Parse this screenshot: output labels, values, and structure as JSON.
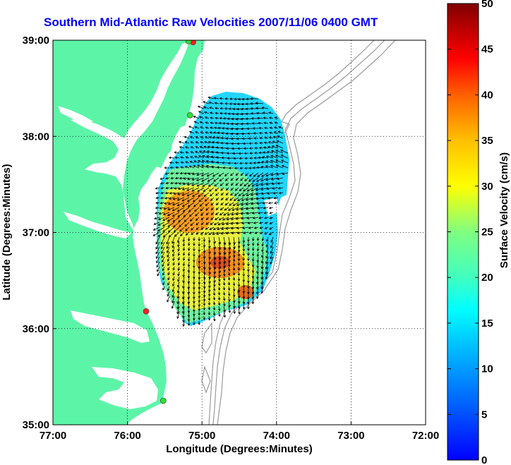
{
  "title": "Southern Mid-Atlantic Raw Velocities 2007/11/06 0400 GMT",
  "map": {
    "x_label": "Longitude (Degrees:Minutes)",
    "y_label": "Latitude (Degrees:Minutes)",
    "x_ticks": [
      {
        "value": -77,
        "label": "77:00"
      },
      {
        "value": -76,
        "label": "76:00"
      },
      {
        "value": -75,
        "label": "75:00"
      },
      {
        "value": -74,
        "label": "74:00"
      },
      {
        "value": -73,
        "label": "73:00"
      },
      {
        "value": -72,
        "label": "72:00"
      }
    ],
    "y_ticks": [
      {
        "value": 39,
        "label": "39:00"
      },
      {
        "value": 38,
        "label": "38:00"
      },
      {
        "value": 37,
        "label": "37:00"
      },
      {
        "value": 36,
        "label": "36:00"
      },
      {
        "value": 35,
        "label": "35:00"
      }
    ],
    "lon_range": [
      -77,
      -72
    ],
    "lat_range": [
      35,
      39
    ],
    "grid": "dotted",
    "land_color": "#5cf5a8",
    "bathymetry_color": "#9a9a9a",
    "stations": [
      {
        "name": "",
        "lon": -75.12,
        "lat": 38.98,
        "color": "#ff2020"
      },
      {
        "name": "",
        "lon": -75.18,
        "lat": 38.99,
        "color": "#30e030"
      },
      {
        "name": "",
        "lon": -75.16,
        "lat": 38.22,
        "color": "#30e030"
      },
      {
        "name": "",
        "lon": -75.75,
        "lat": 36.18,
        "color": "#ff2020"
      },
      {
        "name": "",
        "lon": -75.52,
        "lat": 35.25,
        "color": "#30e030"
      }
    ]
  },
  "colorbar": {
    "label": "Surface Velocity (cm/s)",
    "min": 0,
    "max": 50,
    "ticks": [
      {
        "value": 50,
        "label": "50"
      },
      {
        "value": 45,
        "label": "45"
      },
      {
        "value": 40,
        "label": "40"
      },
      {
        "value": 35,
        "label": "35"
      },
      {
        "value": 30,
        "label": "30"
      },
      {
        "value": 25,
        "label": "25"
      },
      {
        "value": 20,
        "label": "20"
      },
      {
        "value": 15,
        "label": "15"
      },
      {
        "value": 10,
        "label": "10"
      },
      {
        "value": 5,
        "label": "5"
      },
      {
        "value": 0,
        "label": "0"
      }
    ],
    "colormap": "jet"
  }
}
